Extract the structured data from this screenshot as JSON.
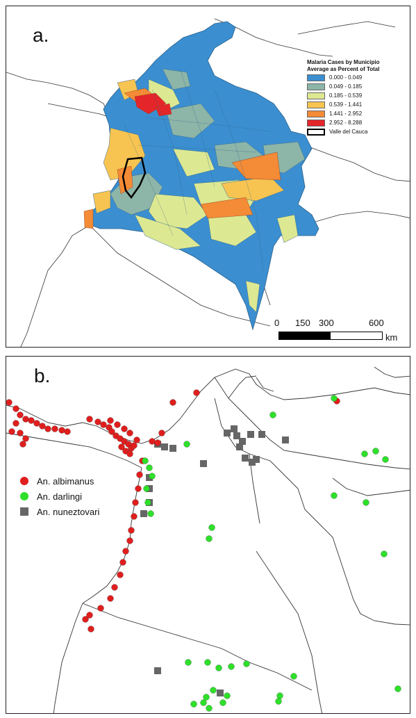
{
  "panel_a": {
    "label": "a.",
    "legend": {
      "title_line1": "Malaria Cases by Municipio",
      "title_line2": "Average as Percent of Total",
      "classes": [
        {
          "label": "0.000 - 0.049",
          "color": "#3b8fd0"
        },
        {
          "label": "0.049 - 0.185",
          "color": "#8db5a8"
        },
        {
          "label": "0.185 - 0.539",
          "color": "#dde892"
        },
        {
          "label": "0.539 - 1.441",
          "color": "#f7c452"
        },
        {
          "label": "1.441 - 2.952",
          "color": "#f48b36"
        },
        {
          "label": "2.952 - 8.288",
          "color": "#e4262b"
        }
      ],
      "outline_label": "Valle del Cauca"
    },
    "scale": {
      "ticks": [
        "0",
        "150",
        "300",
        "600"
      ],
      "unit": "km"
    }
  },
  "panel_b": {
    "label": "b.",
    "legend": [
      {
        "label": "An. albimanus",
        "color": "#e01e1e",
        "shape": "circle"
      },
      {
        "label": "An. darlingi",
        "color": "#2ee02a",
        "shape": "circle"
      },
      {
        "label": "An. nuneztovari",
        "color": "#666666",
        "shape": "square"
      }
    ]
  }
}
